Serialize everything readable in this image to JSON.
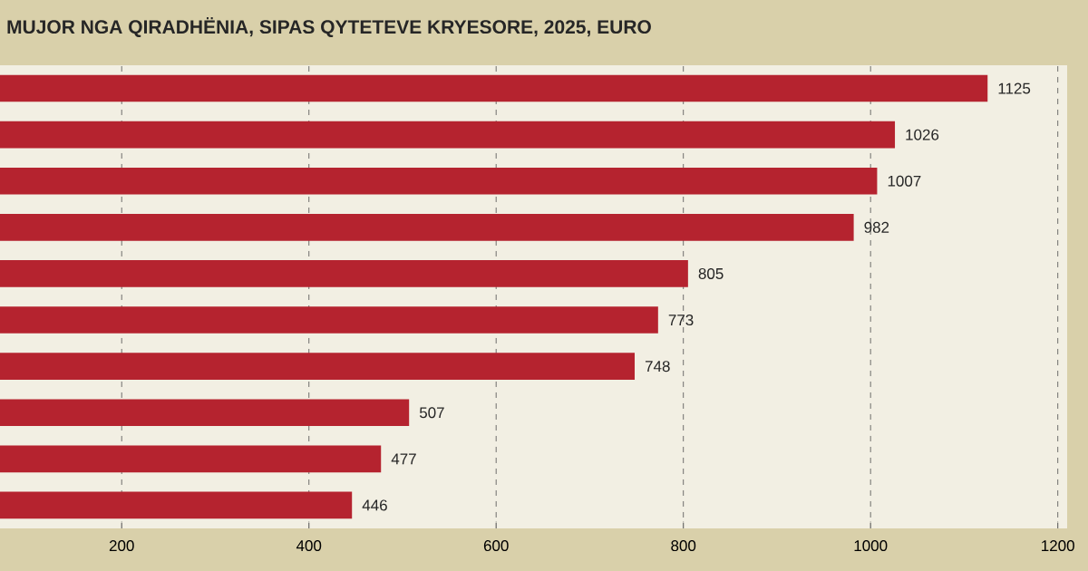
{
  "chart_data": {
    "type": "bar",
    "orientation": "horizontal",
    "title": "MUJOR NGA QIRADHËNIA, SIPAS QYTETEVE KRYESORE, 2025, EURO",
    "categories": [
      null,
      null,
      null,
      null,
      null,
      null,
      null,
      null,
      null,
      null
    ],
    "values": [
      1125,
      1026,
      1007,
      982,
      805,
      773,
      748,
      507,
      477,
      446
    ],
    "color": "#b5232f",
    "data_labels": true,
    "grid": "x",
    "xlim": [
      70,
      1210
    ],
    "xticks": [
      200,
      400,
      600,
      800,
      1000,
      1200
    ]
  }
}
